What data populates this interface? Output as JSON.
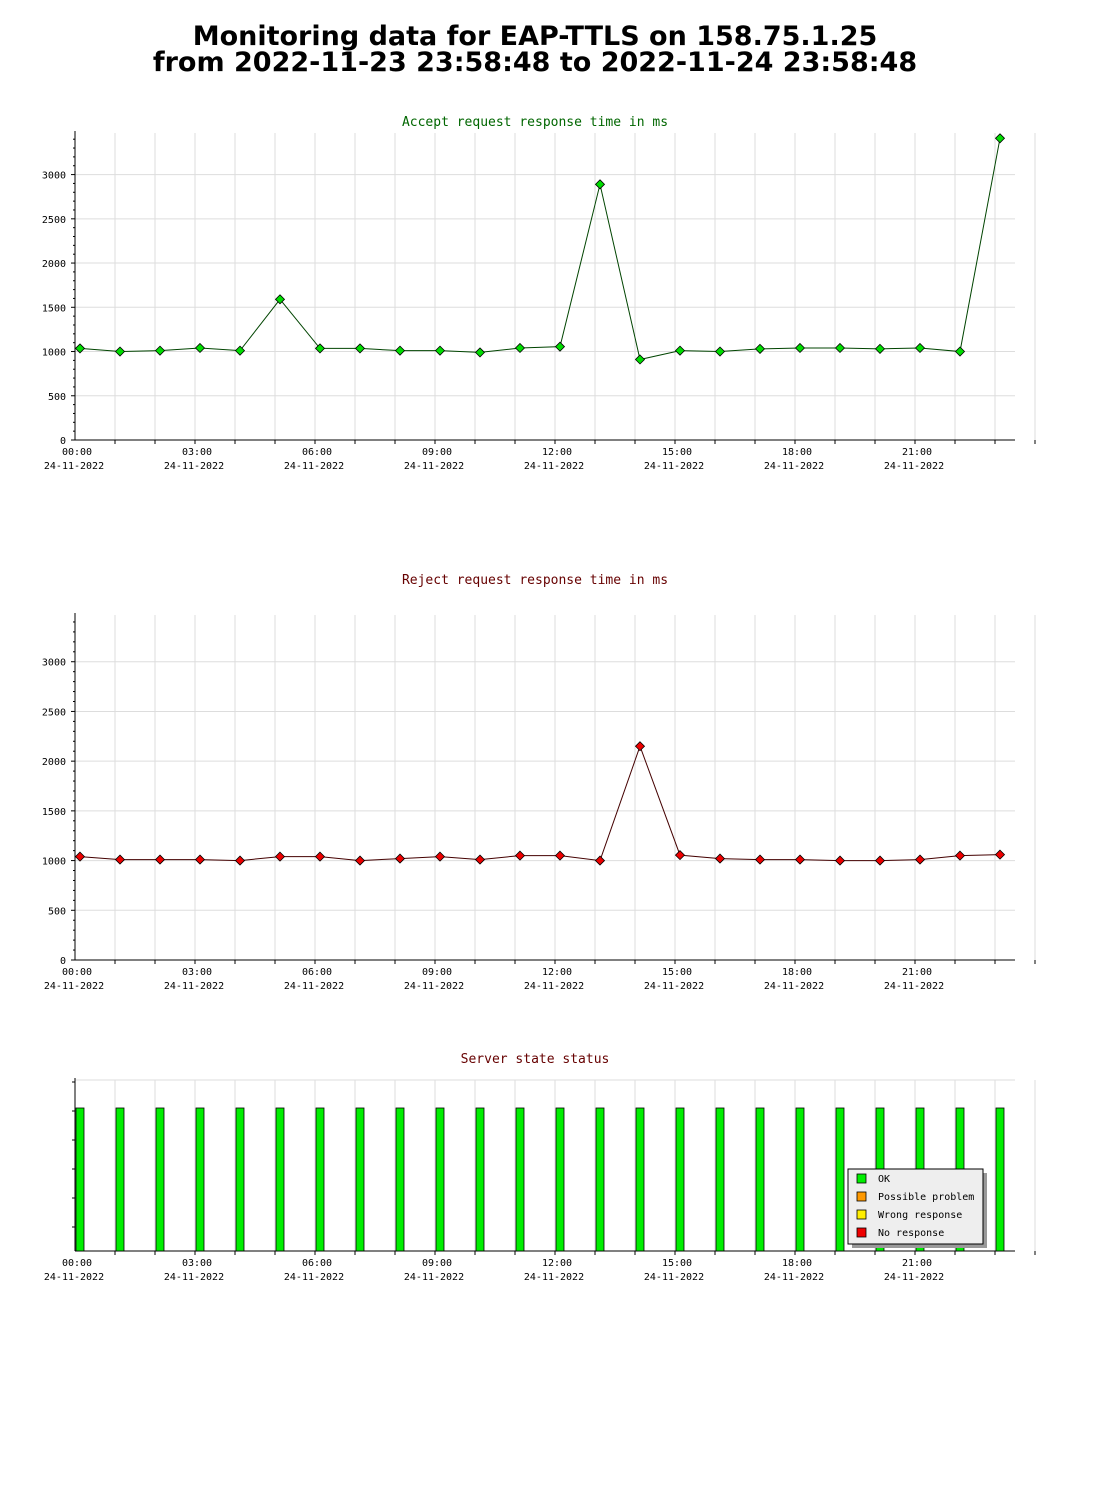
{
  "page": {
    "title_line1": "Monitoring data for EAP-TTLS on 158.75.1.25",
    "title_line2": "from 2022-11-23 23:58:48 to 2022-11-24 23:58:48"
  },
  "colors": {
    "accept": "#00dd00",
    "accept_title": "#006600",
    "reject": "#ee0000",
    "reject_title": "#660000",
    "status_title": "#660000",
    "grid": "#dddddd"
  },
  "chart_data": [
    {
      "type": "line",
      "title": "Accept request response time in ms",
      "x_tick_labels": [
        {
          "time": "00:00",
          "date": "24-11-2022"
        },
        {
          "time": "03:00",
          "date": "24-11-2022"
        },
        {
          "time": "06:00",
          "date": "24-11-2022"
        },
        {
          "time": "09:00",
          "date": "24-11-2022"
        },
        {
          "time": "12:00",
          "date": "24-11-2022"
        },
        {
          "time": "15:00",
          "date": "24-11-2022"
        },
        {
          "time": "18:00",
          "date": "24-11-2022"
        },
        {
          "time": "21:00",
          "date": "24-11-2022"
        }
      ],
      "y_ticks": [
        0,
        500,
        1000,
        1500,
        2000,
        2500,
        3000
      ],
      "ylim": [
        0,
        3470
      ],
      "grid": true,
      "series": [
        {
          "values": [
            1035,
            1000,
            1010,
            1040,
            1010,
            1590,
            1035,
            1035,
            1010,
            1010,
            990,
            1040,
            1055,
            2890,
            910,
            1010,
            1000,
            1030,
            1040,
            1040,
            1030,
            1040,
            1000,
            3410
          ]
        }
      ]
    },
    {
      "type": "line",
      "title": "Reject request response time in ms",
      "x_tick_labels": [
        {
          "time": "00:00",
          "date": "24-11-2022"
        },
        {
          "time": "03:00",
          "date": "24-11-2022"
        },
        {
          "time": "06:00",
          "date": "24-11-2022"
        },
        {
          "time": "09:00",
          "date": "24-11-2022"
        },
        {
          "time": "12:00",
          "date": "24-11-2022"
        },
        {
          "time": "15:00",
          "date": "24-11-2022"
        },
        {
          "time": "18:00",
          "date": "24-11-2022"
        },
        {
          "time": "21:00",
          "date": "24-11-2022"
        }
      ],
      "y_ticks": [
        0,
        500,
        1000,
        1500,
        2000,
        2500,
        3000
      ],
      "ylim": [
        0,
        3470
      ],
      "grid": true,
      "series": [
        {
          "values": [
            1040,
            1010,
            1010,
            1010,
            1000,
            1040,
            1040,
            1000,
            1020,
            1040,
            1010,
            1050,
            1050,
            1000,
            2150,
            1055,
            1020,
            1010,
            1010,
            1000,
            1000,
            1010,
            1050,
            1060
          ]
        }
      ]
    },
    {
      "type": "bar",
      "title": "Server state status",
      "x_tick_labels": [
        {
          "time": "00:00",
          "date": "24-11-2022"
        },
        {
          "time": "03:00",
          "date": "24-11-2022"
        },
        {
          "time": "06:00",
          "date": "24-11-2022"
        },
        {
          "time": "09:00",
          "date": "24-11-2022"
        },
        {
          "time": "12:00",
          "date": "24-11-2022"
        },
        {
          "time": "15:00",
          "date": "24-11-2022"
        },
        {
          "time": "18:00",
          "date": "24-11-2022"
        },
        {
          "time": "21:00",
          "date": "24-11-2022"
        }
      ],
      "states": [
        "OK",
        "OK",
        "OK",
        "OK",
        "OK",
        "OK",
        "OK",
        "OK",
        "OK",
        "OK",
        "OK",
        "OK",
        "OK",
        "OK",
        "OK",
        "OK",
        "OK",
        "OK",
        "OK",
        "OK",
        "OK",
        "OK",
        "OK",
        "OK"
      ],
      "legend": [
        {
          "label": "OK",
          "color": "#00ee00"
        },
        {
          "label": "Possible problem",
          "color": "#ff9900"
        },
        {
          "label": "Wrong response",
          "color": "#ffee00"
        },
        {
          "label": "No response",
          "color": "#ee0000"
        }
      ],
      "legend_position": "bottom-right"
    }
  ]
}
